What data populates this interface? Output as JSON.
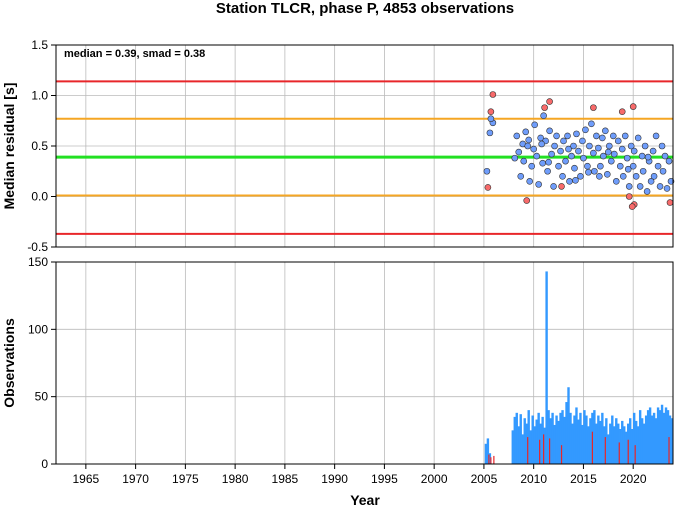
{
  "chart_data": [
    {
      "type": "scatter",
      "title": "Station TLCR, phase P, 4853 observations",
      "ylabel": "Median residual [s]",
      "annotation": "median = 0.39, smad = 0.38",
      "xlim": [
        1962,
        2024
      ],
      "ylim": [
        -0.5,
        1.5
      ],
      "yticks": [
        "-0.5",
        "0.0",
        "0.5",
        "1.0",
        "1.5"
      ],
      "yticks_values": [
        -0.5,
        0.0,
        0.5,
        1.0,
        1.5
      ],
      "grid": true,
      "hlines": [
        {
          "y": 1.14,
          "color": "#e8262a"
        },
        {
          "y": 0.77,
          "color": "#f5a623"
        },
        {
          "y": 0.39,
          "color": "#22e022"
        },
        {
          "y": 0.01,
          "color": "#f5a623"
        },
        {
          "y": -0.37,
          "color": "#e8262a"
        }
      ],
      "colors": {
        "inlier": "#6f9dfb",
        "outlier": "#f76a6a"
      },
      "series": [
        {
          "points": [
            [
              2005.3,
              0.25
            ],
            [
              2005.6,
              0.63
            ],
            [
              2005.9,
              0.73
            ],
            [
              2005.7,
              0.77
            ],
            [
              2008.1,
              0.38
            ],
            [
              2008.3,
              0.6
            ],
            [
              2008.5,
              0.44
            ],
            [
              2008.7,
              0.2
            ],
            [
              2008.9,
              0.52
            ],
            [
              2009.0,
              0.35
            ],
            [
              2009.2,
              0.64
            ],
            [
              2009.4,
              0.5
            ],
            [
              2009.6,
              0.15
            ],
            [
              2009.8,
              0.3
            ],
            [
              2010.0,
              0.47
            ],
            [
              2010.1,
              0.71
            ],
            [
              2010.3,
              0.4
            ],
            [
              2010.5,
              0.12
            ],
            [
              2010.7,
              0.58
            ],
            [
              2010.9,
              0.33
            ],
            [
              2011.0,
              0.8
            ],
            [
              2011.2,
              0.55
            ],
            [
              2011.4,
              0.25
            ],
            [
              2011.6,
              0.65
            ],
            [
              2011.8,
              0.42
            ],
            [
              2012.0,
              0.1
            ],
            [
              2012.1,
              0.5
            ],
            [
              2012.3,
              0.6
            ],
            [
              2012.5,
              0.3
            ],
            [
              2012.7,
              0.45
            ],
            [
              2012.9,
              0.2
            ],
            [
              2013.0,
              0.55
            ],
            [
              2013.2,
              0.35
            ],
            [
              2013.4,
              0.6
            ],
            [
              2013.6,
              0.15
            ],
            [
              2013.8,
              0.4
            ],
            [
              2014.0,
              0.5
            ],
            [
              2014.1,
              0.28
            ],
            [
              2014.3,
              0.62
            ],
            [
              2014.5,
              0.45
            ],
            [
              2014.7,
              0.2
            ],
            [
              2014.9,
              0.55
            ],
            [
              2015.0,
              0.38
            ],
            [
              2015.2,
              0.66
            ],
            [
              2015.4,
              0.3
            ],
            [
              2015.6,
              0.5
            ],
            [
              2015.8,
              0.72
            ],
            [
              2016.0,
              0.43
            ],
            [
              2016.1,
              0.25
            ],
            [
              2016.3,
              0.6
            ],
            [
              2016.5,
              0.48
            ],
            [
              2016.7,
              0.3
            ],
            [
              2016.9,
              0.58
            ],
            [
              2017.0,
              0.4
            ],
            [
              2017.2,
              0.65
            ],
            [
              2017.4,
              0.22
            ],
            [
              2017.6,
              0.5
            ],
            [
              2017.8,
              0.35
            ],
            [
              2018.0,
              0.6
            ],
            [
              2018.1,
              0.42
            ],
            [
              2018.3,
              0.15
            ],
            [
              2018.5,
              0.55
            ],
            [
              2018.7,
              0.3
            ],
            [
              2018.9,
              0.47
            ],
            [
              2019.0,
              0.2
            ],
            [
              2019.2,
              0.6
            ],
            [
              2019.4,
              0.38
            ],
            [
              2019.6,
              0.1
            ],
            [
              2019.8,
              0.5
            ],
            [
              2020.0,
              0.3
            ],
            [
              2020.1,
              0.45
            ],
            [
              2020.3,
              0.2
            ],
            [
              2020.5,
              0.58
            ],
            [
              2020.7,
              0.1
            ],
            [
              2020.9,
              0.4
            ],
            [
              2021.0,
              0.25
            ],
            [
              2021.2,
              0.5
            ],
            [
              2021.4,
              0.05
            ],
            [
              2021.6,
              0.35
            ],
            [
              2021.8,
              0.15
            ],
            [
              2022.0,
              0.45
            ],
            [
              2022.1,
              0.2
            ],
            [
              2022.3,
              0.6
            ],
            [
              2022.5,
              0.3
            ],
            [
              2022.7,
              0.1
            ],
            [
              2022.9,
              0.5
            ],
            [
              2023.0,
              0.25
            ],
            [
              2023.2,
              0.4
            ],
            [
              2023.4,
              0.08
            ],
            [
              2023.6,
              0.35
            ],
            [
              2023.8,
              0.15
            ],
            [
              2009.5,
              0.56
            ],
            [
              2011.5,
              0.34
            ],
            [
              2013.5,
              0.47
            ],
            [
              2015.5,
              0.24
            ],
            [
              2017.5,
              0.44
            ],
            [
              2019.5,
              0.27
            ],
            [
              2021.5,
              0.39
            ],
            [
              2016.6,
              0.2
            ],
            [
              2014.2,
              0.16
            ],
            [
              2010.8,
              0.52
            ]
          ]
        },
        {
          "points": [
            [
              2005.4,
              0.09
            ],
            [
              2005.7,
              0.84
            ],
            [
              2005.9,
              1.01
            ],
            [
              2009.3,
              -0.04
            ],
            [
              2011.1,
              0.88
            ],
            [
              2011.6,
              0.94
            ],
            [
              2012.8,
              0.1
            ],
            [
              2016.0,
              0.88
            ],
            [
              2018.9,
              0.84
            ],
            [
              2019.6,
              0.0
            ],
            [
              2020.0,
              0.89
            ],
            [
              2020.1,
              -0.08
            ],
            [
              2023.7,
              -0.06
            ],
            [
              2019.9,
              -0.1
            ]
          ]
        }
      ]
    },
    {
      "type": "bar",
      "ylabel": "Observations",
      "xlabel": "Year",
      "xlim": [
        1962,
        2024
      ],
      "ylim": [
        0,
        150
      ],
      "xticks": [
        "1965",
        "1970",
        "1975",
        "1980",
        "1985",
        "1990",
        "1995",
        "2000",
        "2005",
        "2010",
        "2015",
        "2020"
      ],
      "xticks_values": [
        1965,
        1970,
        1975,
        1980,
        1985,
        1990,
        1995,
        2000,
        2005,
        2010,
        2015,
        2020
      ],
      "yticks": [
        "0",
        "50",
        "100",
        "150"
      ],
      "yticks_values": [
        0,
        50,
        100,
        150
      ],
      "grid": true,
      "colors": {
        "main": "#3399ff",
        "highlight": "#e8262a"
      },
      "series": [
        {
          "x": [
            2005.2,
            2005.4,
            2005.6,
            2007.9,
            2008.1,
            2008.3,
            2008.5,
            2008.7,
            2008.9,
            2009.1,
            2009.3,
            2009.5,
            2009.7,
            2009.9,
            2010.1,
            2010.3,
            2010.5,
            2010.7,
            2010.9,
            2011.1,
            2011.3,
            2011.5,
            2011.7,
            2011.9,
            2012.1,
            2012.3,
            2012.5,
            2012.7,
            2012.9,
            2013.1,
            2013.3,
            2013.5,
            2013.7,
            2013.9,
            2014.1,
            2014.3,
            2014.5,
            2014.7,
            2014.9,
            2015.1,
            2015.3,
            2015.5,
            2015.7,
            2015.9,
            2016.1,
            2016.3,
            2016.5,
            2016.7,
            2016.9,
            2017.1,
            2017.3,
            2017.5,
            2017.7,
            2017.9,
            2018.1,
            2018.3,
            2018.5,
            2018.7,
            2018.9,
            2019.1,
            2019.3,
            2019.5,
            2019.7,
            2019.9,
            2020.1,
            2020.3,
            2020.5,
            2020.7,
            2020.9,
            2021.1,
            2021.3,
            2021.5,
            2021.7,
            2021.9,
            2022.1,
            2022.3,
            2022.5,
            2022.7,
            2022.9,
            2023.1,
            2023.3,
            2023.5,
            2023.7,
            2023.9
          ],
          "values": [
            15,
            19,
            8,
            25,
            35,
            38,
            28,
            37,
            22,
            34,
            30,
            40,
            25,
            36,
            28,
            33,
            38,
            30,
            35,
            27,
            143,
            40,
            34,
            38,
            29,
            36,
            32,
            38,
            40,
            35,
            46,
            57,
            38,
            30,
            36,
            42,
            33,
            38,
            29,
            40,
            36,
            28,
            34,
            38,
            40,
            30,
            36,
            32,
            38,
            28,
            34,
            22,
            30,
            36,
            28,
            34,
            30,
            26,
            32,
            28,
            24,
            30,
            34,
            26,
            38,
            32,
            28,
            40,
            34,
            30,
            36,
            40,
            42,
            36,
            38,
            34,
            42,
            40,
            44,
            38,
            42,
            40,
            36,
            34
          ]
        },
        {
          "x": [
            2005.5,
            2005.7,
            2006.0,
            2009.4,
            2010.6,
            2011.0,
            2011.6,
            2012.8,
            2015.9,
            2017.2,
            2018.6,
            2019.5,
            2020.2,
            2023.6
          ],
          "values": [
            7,
            5,
            6,
            20,
            18,
            22,
            19,
            14,
            24,
            20,
            16,
            18,
            14,
            20
          ]
        }
      ]
    }
  ]
}
